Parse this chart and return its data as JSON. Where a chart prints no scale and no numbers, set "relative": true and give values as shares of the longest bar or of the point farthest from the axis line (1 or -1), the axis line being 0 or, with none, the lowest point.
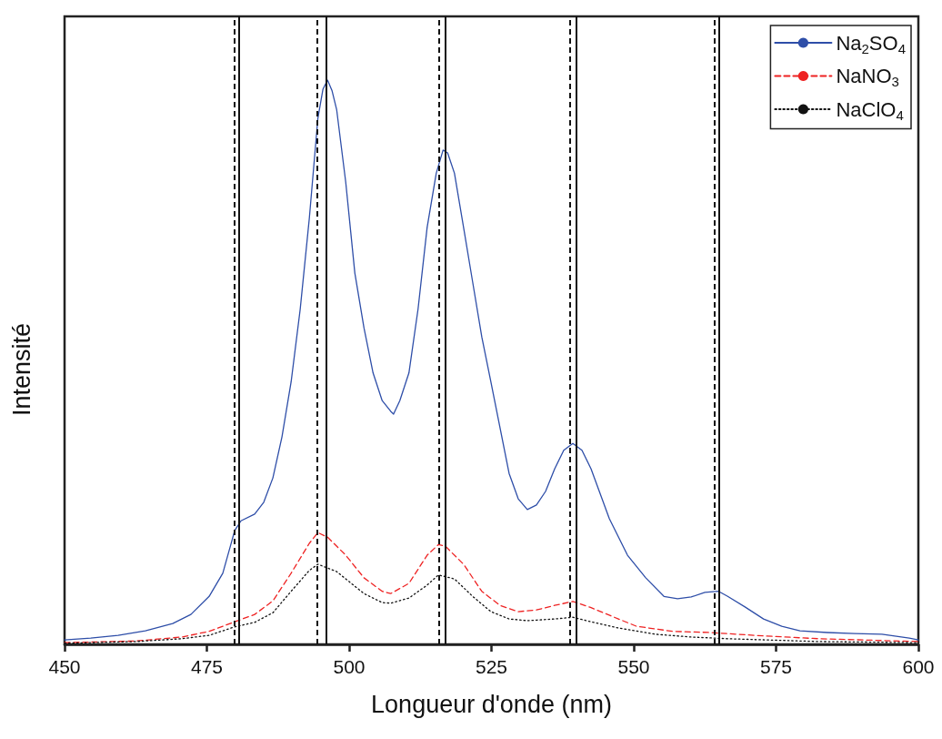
{
  "chart_data": {
    "type": "line",
    "xlabel": "Longueur d'onde (nm)",
    "ylabel": "Intensité",
    "relative": true,
    "xlim": [
      450,
      600
    ],
    "xticks": [
      450,
      475,
      500,
      525,
      550,
      575,
      600
    ],
    "legend": "top right",
    "marker": "none",
    "grid": false,
    "series": [
      {
        "name": "Na$_{2}$SO$_{4}$",
        "color": "#2e4ea8",
        "line_style": "solid",
        "x": [
          450,
          454.6,
          459.4,
          464.2,
          469.0,
          472.2,
          475.4,
          477.8,
          479.9,
          481.0,
          483.4,
          485.0,
          486.6,
          488.2,
          489.8,
          491.4,
          493.0,
          494.5,
          495.4,
          496.2,
          497.0,
          497.8,
          499.4,
          501.0,
          502.6,
          504.2,
          505.8,
          507.3,
          507.8,
          508.9,
          510.5,
          512.1,
          513.7,
          515.3,
          516.5,
          517.3,
          518.5,
          520.1,
          521.7,
          523.3,
          524.9,
          526.5,
          528.1,
          529.7,
          531.3,
          532.9,
          534.5,
          536.1,
          537.7,
          539.3,
          540.9,
          542.5,
          545.7,
          548.9,
          552.1,
          555.3,
          557.7,
          560.1,
          562.5,
          564.9,
          566.5,
          569.6,
          572.8,
          576.0,
          579.2,
          584.0,
          588.8,
          593.6,
          598.4,
          600
        ],
        "values": [
          0.008,
          0.011,
          0.016,
          0.024,
          0.037,
          0.053,
          0.085,
          0.126,
          0.202,
          0.219,
          0.231,
          0.252,
          0.295,
          0.368,
          0.465,
          0.594,
          0.755,
          0.932,
          0.984,
          1,
          0.981,
          0.948,
          0.819,
          0.658,
          0.561,
          0.481,
          0.432,
          0.413,
          0.408,
          0.432,
          0.481,
          0.594,
          0.739,
          0.835,
          0.876,
          0.871,
          0.835,
          0.739,
          0.642,
          0.545,
          0.465,
          0.384,
          0.303,
          0.258,
          0.239,
          0.247,
          0.271,
          0.311,
          0.344,
          0.356,
          0.344,
          0.311,
          0.223,
          0.158,
          0.118,
          0.085,
          0.081,
          0.084,
          0.092,
          0.094,
          0.085,
          0.066,
          0.045,
          0.032,
          0.024,
          0.021,
          0.019,
          0.018,
          0.011,
          0.008
        ]
      },
      {
        "name": "NaNO$_{3}$",
        "color": "#ee2222",
        "line_style": "dashed",
        "x": [
          450,
          462.6,
          470.6,
          475.4,
          479.9,
          483.4,
          486.6,
          489.8,
          493.0,
          494.5,
          496.2,
          499.4,
          502.6,
          505.8,
          507.3,
          510.5,
          513.7,
          515.7,
          516.9,
          520.1,
          523.3,
          526.5,
          529.7,
          532.9,
          536.1,
          539.3,
          542.5,
          547.3,
          550.5,
          556.9,
          563.3,
          566.5,
          572.8,
          582.4,
          600
        ],
        "values": [
          0.003,
          0.006,
          0.013,
          0.023,
          0.04,
          0.053,
          0.077,
          0.126,
          0.179,
          0.198,
          0.19,
          0.158,
          0.118,
          0.094,
          0.09,
          0.108,
          0.158,
          0.177,
          0.174,
          0.142,
          0.094,
          0.069,
          0.058,
          0.061,
          0.069,
          0.076,
          0.065,
          0.045,
          0.032,
          0.023,
          0.021,
          0.019,
          0.015,
          0.01,
          0.005
        ]
      },
      {
        "name": "NaClO$_{4}$",
        "color": "#111111",
        "line_style": "dotted",
        "x": [
          450,
          462.6,
          470.6,
          475.4,
          479.9,
          483.4,
          486.6,
          489.8,
          493.0,
          494.5,
          497.8,
          502.6,
          505.8,
          507.3,
          510.5,
          513.7,
          515.7,
          518.5,
          521.7,
          524.9,
          528.1,
          531.3,
          536.1,
          539.3,
          542.5,
          547.3,
          553.7,
          560.1,
          566.5,
          582.4,
          600
        ],
        "values": [
          0.002,
          0.005,
          0.01,
          0.016,
          0.031,
          0.039,
          0.056,
          0.094,
          0.131,
          0.142,
          0.129,
          0.09,
          0.074,
          0.073,
          0.082,
          0.105,
          0.123,
          0.116,
          0.085,
          0.058,
          0.045,
          0.042,
          0.045,
          0.048,
          0.04,
          0.029,
          0.018,
          0.013,
          0.01,
          0.005,
          0.003
        ]
      }
    ],
    "ref_lines": [
      {
        "axis": "x",
        "value": 479.9,
        "color": "#111111",
        "line_style": "dashed"
      },
      {
        "axis": "x",
        "value": 480.7,
        "color": "#111111",
        "line_style": "solid"
      },
      {
        "axis": "x",
        "value": 494.4,
        "color": "#111111",
        "line_style": "dashed"
      },
      {
        "axis": "x",
        "value": 496.0,
        "color": "#111111",
        "line_style": "solid"
      },
      {
        "axis": "x",
        "value": 515.7,
        "color": "#111111",
        "line_style": "dashed"
      },
      {
        "axis": "x",
        "value": 516.9,
        "color": "#111111",
        "line_style": "solid"
      },
      {
        "axis": "x",
        "value": 538.8,
        "color": "#111111",
        "line_style": "dashed"
      },
      {
        "axis": "x",
        "value": 539.9,
        "color": "#111111",
        "line_style": "solid"
      },
      {
        "axis": "x",
        "value": 564.2,
        "color": "#111111",
        "line_style": "dashed"
      },
      {
        "axis": "x",
        "value": 565.0,
        "color": "#111111",
        "line_style": "solid"
      }
    ]
  }
}
